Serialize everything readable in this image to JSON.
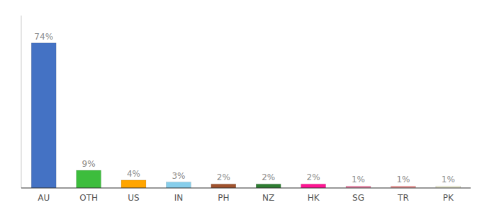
{
  "chart_data": {
    "type": "bar",
    "categories": [
      "AU",
      "OTH",
      "US",
      "IN",
      "PH",
      "NZ",
      "HK",
      "SG",
      "TR",
      "PK"
    ],
    "values": [
      74,
      9,
      4,
      3,
      2,
      2,
      2,
      1,
      1,
      1
    ],
    "value_labels": [
      "74%",
      "9%",
      "4%",
      "3%",
      "2%",
      "2%",
      "2%",
      "1%",
      "1%",
      "1%"
    ],
    "colors": [
      "#4472C4",
      "#3DBD3D",
      "#FFA500",
      "#87CEEB",
      "#A0522D",
      "#2E7D32",
      "#FF1493",
      "#F48FB1",
      "#F4A0A0",
      "#F5F5DC"
    ],
    "ylim": [
      0,
      88
    ],
    "data_labels": true,
    "tick_labels": "x",
    "grid": false
  }
}
